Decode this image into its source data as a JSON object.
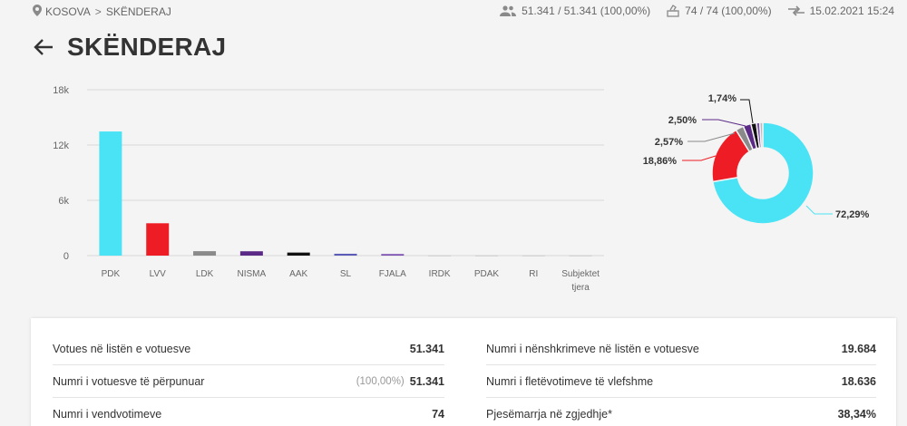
{
  "breadcrumb": {
    "root": "KOSOVA",
    "separator": ">",
    "current": "SKËNDERAJ"
  },
  "stats": {
    "voters": "51.341 / 51.341 (100,00%)",
    "stations": "74 / 74 (100,00%)",
    "updated": "15.02.2021 15:24"
  },
  "page": {
    "title": "SKËNDERAJ"
  },
  "chart_data": [
    {
      "type": "bar",
      "categories": [
        "PDK",
        "LVV",
        "LDK",
        "NISMA",
        "AAK",
        "SL",
        "FJALA",
        "IRDK",
        "PDAK",
        "RI",
        "Subjektet tjera"
      ],
      "values": [
        13470,
        3510,
        480,
        470,
        330,
        200,
        170,
        10,
        10,
        10,
        10
      ],
      "colors": [
        "#4ae3f5",
        "#ee1c25",
        "#8a8a8a",
        "#5b2a86",
        "#111111",
        "#5b5bb8",
        "#7b4fb0",
        "#aaaaaa",
        "#aaaaaa",
        "#aaaaaa",
        "#aaaaaa"
      ],
      "ylim": [
        0,
        18000
      ],
      "yticks": [
        {
          "value": 0,
          "label": "0"
        },
        {
          "value": 6000,
          "label": "6k"
        },
        {
          "value": 12000,
          "label": "12k"
        },
        {
          "value": 18000,
          "label": "18k"
        }
      ],
      "grid": true
    },
    {
      "type": "pie",
      "labels": [
        "72,29%",
        "18,86%",
        "2,57%",
        "2,50%",
        "1,74%",
        "",
        ""
      ],
      "values": [
        72.29,
        18.86,
        2.57,
        2.5,
        1.74,
        1.1,
        0.94
      ],
      "colors": [
        "#4ae3f5",
        "#ee1c25",
        "#8a8a8a",
        "#5b2a86",
        "#111111",
        "#7b4fb0",
        "#bbbbbb"
      ]
    }
  ],
  "summary": {
    "left": [
      {
        "label": "Votues në listën e votuesve",
        "pct": "",
        "value": "51.341"
      },
      {
        "label": "Numri i votuesve të përpunuar",
        "pct": "(100,00%)",
        "value": "51.341"
      },
      {
        "label": "Numri i vendvotimeve",
        "pct": "",
        "value": "74"
      }
    ],
    "right": [
      {
        "label": "Numri i nënshkrimeve në listën e votuesve",
        "pct": "",
        "value": "19.684"
      },
      {
        "label": "Numri i fletëvotimeve të vlefshme",
        "pct": "",
        "value": "18.636"
      },
      {
        "label": "Pjesëmarrja në zgjedhje*",
        "pct": "",
        "value": "38,34%"
      }
    ]
  }
}
